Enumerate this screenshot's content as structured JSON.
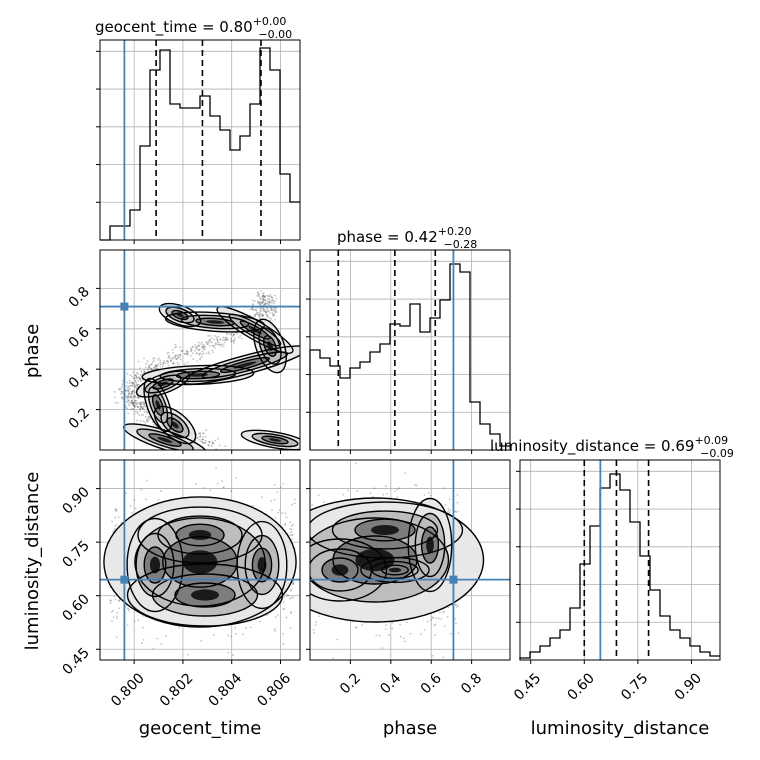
{
  "chart_data": {
    "type": "corner",
    "parameters": [
      "geocent_time",
      "phase",
      "luminosity_distance"
    ],
    "titles": [
      {
        "text": "geocent_time = 0.80",
        "sup": "+0.00",
        "sub": "−0.00"
      },
      {
        "text": "phase = 0.42",
        "sup": "+0.20",
        "sub": "−0.28"
      },
      {
        "text": "luminosity_distance = 0.69",
        "sup": "+0.09",
        "sub": "−0.09"
      }
    ],
    "axis_labels": [
      "geocent_time",
      "phase",
      "luminosity_distance"
    ],
    "ticks": {
      "geocent_time": [
        "0.800",
        "0.802",
        "0.804",
        "0.806"
      ],
      "phase": [
        "0.2",
        "0.4",
        "0.6",
        "0.8"
      ],
      "luminosity_distance": [
        "0.45",
        "0.60",
        "0.75",
        "0.90"
      ]
    },
    "ranges": {
      "geocent_time": [
        0.7986,
        0.8068
      ],
      "phase": [
        0.0,
        0.99
      ],
      "luminosity_distance": [
        0.42,
        0.98
      ]
    },
    "truths": {
      "geocent_time": 0.7996,
      "phase": 0.71,
      "luminosity_distance": 0.645
    },
    "quantiles": {
      "geocent_time": [
        0.8009,
        0.8028,
        0.8052
      ],
      "phase": [
        0.14,
        0.42,
        0.62
      ],
      "luminosity_distance": [
        0.6,
        0.69,
        0.78
      ]
    },
    "histograms": {
      "geocent_time": [
        0,
        0.07,
        0.07,
        0.15,
        0.47,
        0.85,
        0.95,
        0.68,
        0.66,
        0.66,
        0.72,
        0.62,
        0.55,
        0.45,
        0.52,
        0.68,
        0.96,
        0.85,
        0.33,
        0.19
      ],
      "phase": [
        0.5,
        0.46,
        0.42,
        0.36,
        0.41,
        0.44,
        0.49,
        0.53,
        0.63,
        0.62,
        0.73,
        0.59,
        0.66,
        0.75,
        0.93,
        0.89,
        0.24,
        0.13,
        0.08,
        0.02
      ],
      "luminosity_distance": [
        0.01,
        0.04,
        0.07,
        0.11,
        0.15,
        0.26,
        0.48,
        0.67,
        0.86,
        0.93,
        0.85,
        0.69,
        0.52,
        0.35,
        0.22,
        0.15,
        0.11,
        0.07,
        0.04,
        0.02
      ]
    },
    "grid": true
  }
}
